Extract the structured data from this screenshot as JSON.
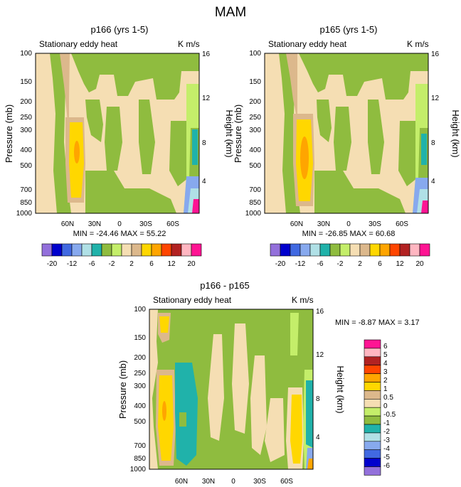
{
  "title": "MAM",
  "legend_colors": [
    "#9370db",
    "#0000cd",
    "#4169e1",
    "#87a9ee",
    "#b0e0e6",
    "#20b2aa",
    "#8fbc3f",
    "#c4ee6a",
    "#f5deb3",
    "#dcb88c",
    "#ffd700",
    "#ffa500",
    "#ff4500",
    "#b22222",
    "#ffb6c1",
    "#ff1493"
  ],
  "top_colorbar": {
    "labels": [
      "-20",
      "-12",
      "-6",
      "-2",
      "2",
      "6",
      "12",
      "20"
    ]
  },
  "diff_colorbar": {
    "labels": [
      "6",
      "5",
      "4",
      "3",
      "2",
      "1",
      "0.5",
      "0",
      "-0.5",
      "-1",
      "-2",
      "-3",
      "-4",
      "-5",
      "-6"
    ]
  },
  "chart_data": [
    {
      "type": "heatmap",
      "title": "p166 (yrs 1-5)",
      "left_subtitle": "Stationary eddy heat",
      "right_subtitle": "K m/s",
      "ylabel": "Pressure (mb)",
      "ylabel_right": "Height (km)",
      "pressure_ticks": [
        "100",
        "150",
        "200",
        "250",
        "300",
        "400",
        "500",
        "700",
        "850",
        "1000"
      ],
      "height_ticks": [
        "16",
        "12",
        "8",
        "4"
      ],
      "lat_ticks": [
        "60N",
        "30N",
        "0",
        "30S",
        "60S"
      ],
      "min_max_text": "MIN = -24.46   MAX =  55.22"
    },
    {
      "type": "heatmap",
      "title": "p165 (yrs 1-5)",
      "left_subtitle": "Stationary eddy heat",
      "right_subtitle": "K m/s",
      "ylabel": "Pressure (mb)",
      "ylabel_right": "Height (km)",
      "pressure_ticks": [
        "100",
        "150",
        "200",
        "250",
        "300",
        "400",
        "500",
        "700",
        "850",
        "1000"
      ],
      "height_ticks": [
        "16",
        "12",
        "8",
        "4"
      ],
      "lat_ticks": [
        "60N",
        "30N",
        "0",
        "30S",
        "60S"
      ],
      "min_max_text": "MIN = -26.85   MAX =  60.68"
    },
    {
      "type": "heatmap",
      "title": "p166 - p165",
      "left_subtitle": "Stationary eddy heat",
      "right_subtitle": "K m/s",
      "ylabel": "Pressure (mb)",
      "ylabel_right": "Height (km)",
      "pressure_ticks": [
        "100",
        "150",
        "200",
        "250",
        "300",
        "400",
        "500",
        "700",
        "850",
        "1000"
      ],
      "height_ticks": [
        "16",
        "12",
        "8",
        "4"
      ],
      "lat_ticks": [
        "60N",
        "30N",
        "0",
        "30S",
        "60S"
      ],
      "min_max_text": "MIN =  -8.87   MAX =   3.17"
    }
  ]
}
